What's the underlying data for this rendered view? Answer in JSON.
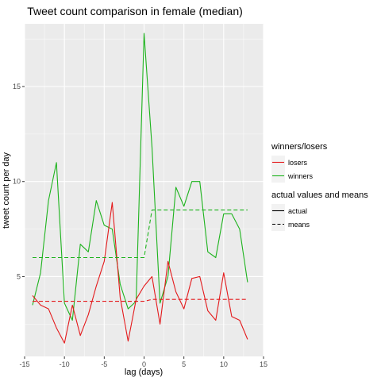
{
  "chart_data": {
    "type": "line",
    "title": "Tweet count comparison in female  (median)",
    "xlabel": "lag (days)",
    "ylabel": "tweet count per day",
    "xlim": [
      -15,
      15
    ],
    "ylim": [
      0.8,
      18.3
    ],
    "xticks": [
      -15,
      -10,
      -5,
      0,
      5,
      10,
      15
    ],
    "yticks": [
      5,
      10,
      15
    ],
    "grid": true,
    "legend": {
      "placement": "right",
      "groups": [
        {
          "title": "winners/losers",
          "items": [
            {
              "label": "losers",
              "color": "#e41a1c",
              "kind": "color"
            },
            {
              "label": "winners",
              "color": "#1db31d",
              "kind": "color"
            }
          ]
        },
        {
          "title": "actual values and means",
          "items": [
            {
              "label": "actual",
              "color": "#000000",
              "kind": "solid"
            },
            {
              "label": "means",
              "color": "#000000",
              "kind": "dashed"
            }
          ]
        }
      ]
    },
    "series": [
      {
        "name": "winners",
        "group": "winners",
        "linetype": "actual",
        "color": "#1db31d",
        "x": [
          -14,
          -13,
          -12,
          -11,
          -10,
          -9,
          -8,
          -7,
          -6,
          -5,
          -4,
          -3,
          -2,
          -1,
          0,
          1,
          2,
          3,
          4,
          5,
          6,
          7,
          8,
          9,
          10,
          11,
          12,
          13
        ],
        "y": [
          3.5,
          5.2,
          9.0,
          11.0,
          3.6,
          2.7,
          6.7,
          6.3,
          9.0,
          7.7,
          7.5,
          4.6,
          3.3,
          3.7,
          17.8,
          11.8,
          3.6,
          5.0,
          9.7,
          8.7,
          10.0,
          10.0,
          6.3,
          6.0,
          8.3,
          8.3,
          7.5,
          4.7
        ]
      },
      {
        "name": "losers",
        "group": "losers",
        "linetype": "actual",
        "color": "#e41a1c",
        "x": [
          -14,
          -13,
          -12,
          -11,
          -10,
          -9,
          -8,
          -7,
          -6,
          -5,
          -4,
          -3,
          -2,
          -1,
          0,
          1,
          2,
          3,
          4,
          5,
          6,
          7,
          8,
          9,
          10,
          11,
          12,
          13
        ],
        "y": [
          4.0,
          3.5,
          3.3,
          2.3,
          1.5,
          3.5,
          1.9,
          3.0,
          4.5,
          5.8,
          8.9,
          3.9,
          1.6,
          3.8,
          4.5,
          5.0,
          2.5,
          5.8,
          4.2,
          3.3,
          4.9,
          5.0,
          3.2,
          2.7,
          5.2,
          2.9,
          2.7,
          1.7
        ]
      },
      {
        "name": "winners",
        "group": "winners",
        "linetype": "means",
        "color": "#1db31d",
        "x": [
          -14,
          0,
          1,
          13
        ],
        "y": [
          6.0,
          6.0,
          8.5,
          8.5
        ]
      },
      {
        "name": "losers",
        "group": "losers",
        "linetype": "means",
        "color": "#e41a1c",
        "x": [
          -14,
          0,
          1,
          13
        ],
        "y": [
          3.7,
          3.7,
          3.8,
          3.8
        ]
      }
    ]
  }
}
